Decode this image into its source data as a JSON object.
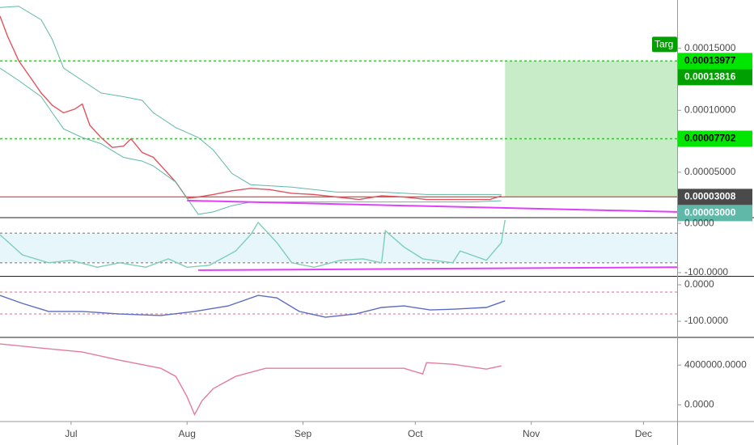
{
  "chart_data": [
    {
      "type": "line",
      "xlim": [
        0,
        181
      ],
      "xticks": [
        {
          "value": 19,
          "label": "Jul"
        },
        {
          "value": 50,
          "label": "Aug"
        },
        {
          "value": 81,
          "label": "Sep"
        },
        {
          "value": 111,
          "label": "Oct"
        },
        {
          "value": 142,
          "label": "Nov"
        },
        {
          "value": 172,
          "label": "Dec"
        }
      ],
      "ylim": [
        1.4e-05,
        0.000189
      ],
      "yticks": [
        {
          "value": 0.00015,
          "label": "0.00015000"
        },
        {
          "value": 0.0001,
          "label": "0.00010000"
        },
        {
          "value": 5e-05,
          "label": "0.00005000"
        }
      ],
      "series": [
        {
          "color": "#e0535f",
          "x": [
            0,
            2,
            5,
            8,
            11,
            14,
            17,
            20,
            22,
            24,
            27,
            30,
            33,
            35,
            38,
            41,
            44,
            47,
            50,
            53,
            57,
            62,
            67,
            72,
            78,
            84,
            90,
            96,
            102,
            108,
            114,
            120,
            126,
            131,
            134
          ],
          "values": [
            0.000176,
            0.00016,
            0.00014,
            0.000127,
            0.000114,
            0.000104,
            9.8e-05,
            0.000101,
            0.000105,
            8.8e-05,
            7.8e-05,
            7e-05,
            7.1e-05,
            7.7e-05,
            6.6e-05,
            6.2e-05,
            5.2e-05,
            4.2e-05,
            2.9e-05,
            3e-05,
            3.2e-05,
            3.5e-05,
            3.7e-05,
            3.6e-05,
            3.3e-05,
            3.2e-05,
            3e-05,
            2.8e-05,
            3.1e-05,
            3e-05,
            2.8e-05,
            2.8e-05,
            2.8e-05,
            2.8e-05,
            3.1e-05
          ]
        },
        {
          "color": "#5fb8a8",
          "x": [
            0,
            5,
            11,
            14,
            17,
            22,
            27,
            33,
            38,
            41,
            47,
            53,
            57,
            62,
            67,
            78,
            90,
            102,
            114,
            126,
            134
          ],
          "values": [
            0.000183,
            0.000184,
            0.000173,
            0.000157,
            0.000134,
            0.000124,
            0.000114,
            0.000111,
            0.000108,
            9.8e-05,
            8.6e-05,
            7.8e-05,
            6.8e-05,
            4.9e-05,
            4e-05,
            3.8e-05,
            3.4e-05,
            3.4e-05,
            3.2e-05,
            3.2e-05,
            3.2e-05
          ]
        },
        {
          "color": "#5fb8a8",
          "x": [
            0,
            5,
            11,
            14,
            17,
            22,
            27,
            33,
            38,
            41,
            47,
            53,
            57,
            62,
            67,
            78,
            90,
            102,
            114,
            126,
            134
          ],
          "values": [
            0.000134,
            0.000124,
            0.000111,
            9.8e-05,
            8.5e-05,
            7.8e-05,
            7.3e-05,
            6.2e-05,
            5.9e-05,
            5.5e-05,
            4.2e-05,
            1.6e-05,
            1.8e-05,
            2.3e-05,
            2.6e-05,
            2.6e-05,
            2.6e-05,
            2.6e-05,
            2.6e-05,
            2.6e-05,
            2.7e-05
          ]
        }
      ],
      "zone": {
        "x": [
          135,
          181
        ],
        "y": [
          3e-05,
          0.00013977
        ],
        "color": "#c8ebc8"
      },
      "levels": [
        {
          "value": 0.00013977,
          "color": "#00e600",
          "style": "dashed"
        },
        {
          "value": 7.702e-05,
          "color": "#00e600",
          "style": "dashed"
        },
        {
          "value": 3.008e-05,
          "color": "#f44336",
          "style": "solid"
        }
      ],
      "trendline": {
        "x": [
          50,
          181
        ],
        "values": [
          2.71e-05,
          1.8e-05
        ],
        "color": "#e040fb"
      },
      "target_label": {
        "text": "Targ",
        "color": "#00a000"
      },
      "price_labels": [
        {
          "value": 0.00013977,
          "color": "#00e600",
          "text_color": "#000000"
        },
        {
          "value": 0.00013816,
          "color": "#00a000",
          "text_color": "#ffffff"
        },
        {
          "value": 7.702e-05,
          "color": "#00e600",
          "text_color": "#000000"
        },
        {
          "value": 3.008e-05,
          "color": "#4a4a4a",
          "text_color": "#ffffff"
        },
        {
          "value": 3e-05,
          "label": "0.00003000",
          "color": "#5fb8a8",
          "text_color": "#ffffff"
        }
      ]
    },
    {
      "type": "line",
      "ylim": [
        -105,
        10
      ],
      "yticks": [
        {
          "value": 0,
          "label": "0.0000"
        },
        {
          "value": -100,
          "label": "-100.0000"
        }
      ],
      "series": [
        {
          "color": "#7ccfb8",
          "x": [
            0,
            6,
            13,
            19,
            26,
            32,
            39,
            45,
            50,
            56,
            63,
            67,
            69,
            74,
            78,
            84,
            91,
            97,
            102,
            103,
            108,
            113,
            121,
            123,
            130,
            134,
            135
          ],
          "values": [
            -23,
            -64,
            -80,
            -75,
            -89,
            -80,
            -89,
            -72,
            -89,
            -85,
            -56,
            -23,
            2,
            -39,
            -80,
            -89,
            -75,
            -72,
            -80,
            -15,
            -48,
            -72,
            -80,
            -56,
            -75,
            -39,
            7
          ]
        }
      ],
      "zone": {
        "y": [
          -80,
          -20
        ],
        "color": "#e6f6fb"
      },
      "levels": [
        {
          "value": -20,
          "color": "#9e9e9e",
          "style": "dashed"
        },
        {
          "value": -80,
          "color": "#9e9e9e",
          "style": "dashed"
        }
      ],
      "trendline": {
        "x": [
          53,
          181
        ],
        "values": [
          -95,
          -89
        ],
        "color": "#e040fb"
      }
    },
    {
      "type": "line",
      "ylim": [
        -142,
        20
      ],
      "yticks": [
        {
          "value": 0,
          "label": "0.0000"
        },
        {
          "value": -100,
          "label": "-100.0000"
        }
      ],
      "series": [
        {
          "color": "#5c6bc0",
          "x": [
            0,
            6,
            13,
            22,
            32,
            43,
            52,
            61,
            69,
            74,
            80,
            87,
            95,
            102,
            108,
            115,
            121,
            130,
            135
          ],
          "values": [
            -29,
            -51,
            -73,
            -73,
            -80,
            -84,
            -73,
            -58,
            -29,
            -36,
            -73,
            -89,
            -80,
            -62,
            -58,
            -69,
            -67,
            -62,
            -44
          ]
        }
      ],
      "levels": [
        {
          "value": -20,
          "color": "#e0a0b0",
          "style": "dashed"
        },
        {
          "value": -80,
          "color": "#e0a0b0",
          "style": "dashed"
        }
      ]
    },
    {
      "type": "line",
      "ylim": [
        -1600000,
        6700000
      ],
      "yticks": [
        {
          "value": 4000000,
          "label": "4000000.0000"
        },
        {
          "value": 0,
          "label": "0.0000"
        }
      ],
      "series": [
        {
          "color": "#e57ba0",
          "x": [
            0,
            11,
            22,
            32,
            43,
            47,
            50,
            52,
            54,
            57,
            63,
            71,
            78,
            87,
            97,
            108,
            113,
            114,
            121,
            130,
            134
          ],
          "values": [
            6120000,
            5710000,
            5310000,
            4490000,
            3670000,
            2860000,
            820000,
            -980000,
            410000,
            1630000,
            2860000,
            3670000,
            3670000,
            3670000,
            3670000,
            3670000,
            3100000,
            4240000,
            4080000,
            3590000,
            3920000
          ]
        }
      ]
    }
  ]
}
